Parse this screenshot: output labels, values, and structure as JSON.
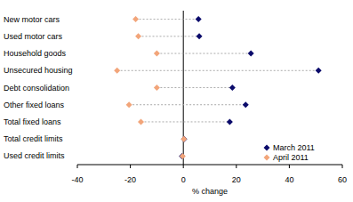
{
  "chart_data": {
    "type": "dot",
    "orientation": "horizontal",
    "categories": [
      "New motor cars",
      "Used motor cars",
      "Household goods",
      "Unsecured housing",
      "Debt consolidation",
      "Other fixed loans",
      "Total fixed loans",
      "Total credit limits",
      "Used credit limits"
    ],
    "series": [
      {
        "name": "March 2011",
        "color": "#0b0b6b",
        "marker": "diamond",
        "values": [
          5.7,
          6,
          25.5,
          51,
          18.5,
          23.5,
          17.5,
          0.3,
          -0.5
        ]
      },
      {
        "name": "April 2011",
        "color": "#f2a57a",
        "marker": "diamond",
        "values": [
          -18,
          -17,
          -10,
          -25,
          -10,
          -20.5,
          -16,
          0.2,
          -0.3
        ]
      }
    ],
    "x_label": "% change",
    "xlim": [
      -40,
      60
    ],
    "xticks": [
      -40,
      -20,
      0,
      20,
      40,
      60
    ],
    "grid": false,
    "legend": "lower right"
  }
}
